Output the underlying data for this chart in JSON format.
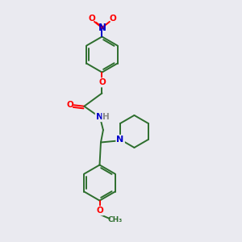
{
  "bg_color": "#eaeaf0",
  "bond_color": "#2d6e2d",
  "atom_colors": {
    "O": "#ff0000",
    "N": "#0000cc",
    "H": "#888888",
    "C": "#2d6e2d"
  },
  "lw": 1.4,
  "fs": 7.5,
  "r_benzene": 0.75
}
